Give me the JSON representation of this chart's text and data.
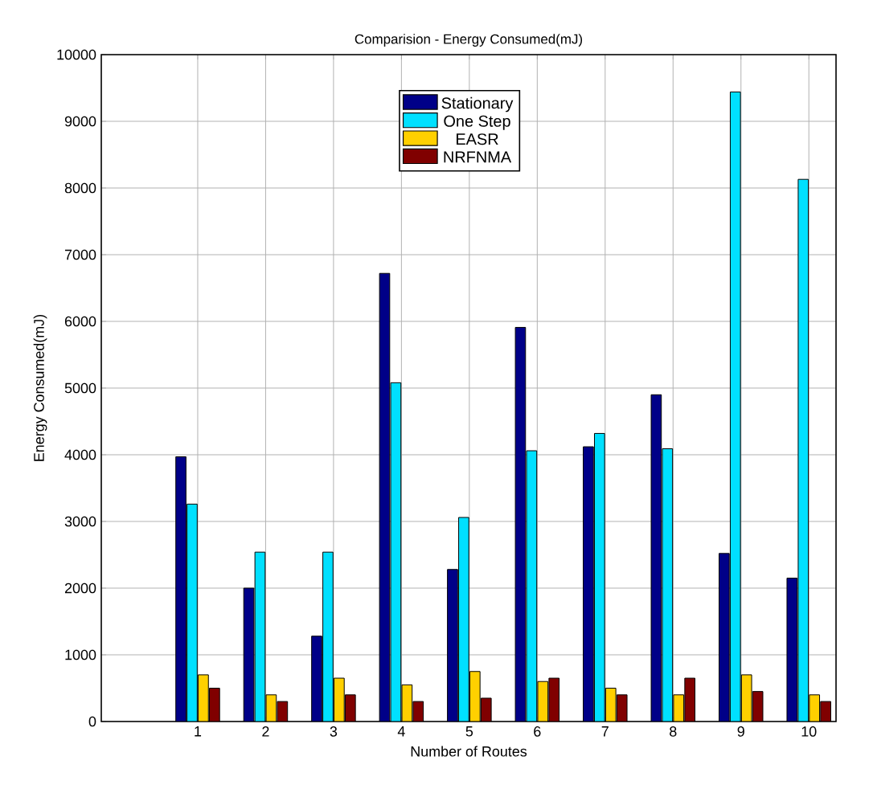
{
  "chart_data": {
    "type": "bar",
    "title": "Comparision - Energy Consumed(mJ)",
    "xlabel": "Number of Routes",
    "ylabel": "Energy Consumed(mJ)",
    "categories": [
      "1",
      "2",
      "3",
      "4",
      "5",
      "6",
      "7",
      "8",
      "9",
      "10"
    ],
    "series": [
      {
        "name": "Stationary",
        "color": "#000088",
        "values": [
          3970,
          2000,
          1280,
          6720,
          2280,
          5910,
          4120,
          4900,
          2520,
          2150
        ]
      },
      {
        "name": "One Step",
        "color": "#00e0ff",
        "values": [
          3260,
          2540,
          2540,
          5080,
          3060,
          4060,
          4320,
          4090,
          9440,
          8130
        ]
      },
      {
        "name": "EASR",
        "color": "#ffd000",
        "values": [
          700,
          400,
          650,
          550,
          750,
          600,
          500,
          400,
          700,
          400
        ]
      },
      {
        "name": "NRFNMA",
        "color": "#800000",
        "values": [
          500,
          300,
          400,
          300,
          350,
          650,
          400,
          650,
          450,
          300
        ]
      }
    ],
    "ylim": [
      0,
      10000
    ],
    "yticks": [
      0,
      1000,
      2000,
      3000,
      4000,
      5000,
      6000,
      7000,
      8000,
      9000,
      10000
    ],
    "grid": true,
    "legend": "top"
  }
}
